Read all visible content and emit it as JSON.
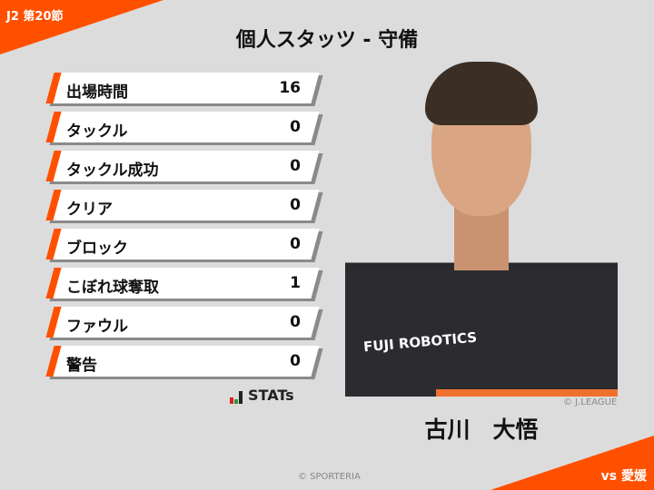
{
  "matchday": "J2 第20節",
  "title": "個人スタッツ - 守備",
  "stats": [
    {
      "label": "出場時間",
      "value": "16"
    },
    {
      "label": "タックル",
      "value": "0"
    },
    {
      "label": "タックル成功",
      "value": "0"
    },
    {
      "label": "クリア",
      "value": "0"
    },
    {
      "label": "ブロック",
      "value": "0"
    },
    {
      "label": "こぼれ球奪取",
      "value": "1"
    },
    {
      "label": "ファウル",
      "value": "0"
    },
    {
      "label": "警告",
      "value": "0"
    }
  ],
  "stats_logo": "STATs",
  "photo": {
    "sponsor": "FUJI ROBOTICS",
    "credit": "© J.LEAGUE"
  },
  "player_name": "古川　大悟",
  "opponent": "vs 愛媛",
  "copyright": "© SPORTERIA",
  "colors": {
    "accent": "#ff5000",
    "background": "#dcdcdc"
  }
}
